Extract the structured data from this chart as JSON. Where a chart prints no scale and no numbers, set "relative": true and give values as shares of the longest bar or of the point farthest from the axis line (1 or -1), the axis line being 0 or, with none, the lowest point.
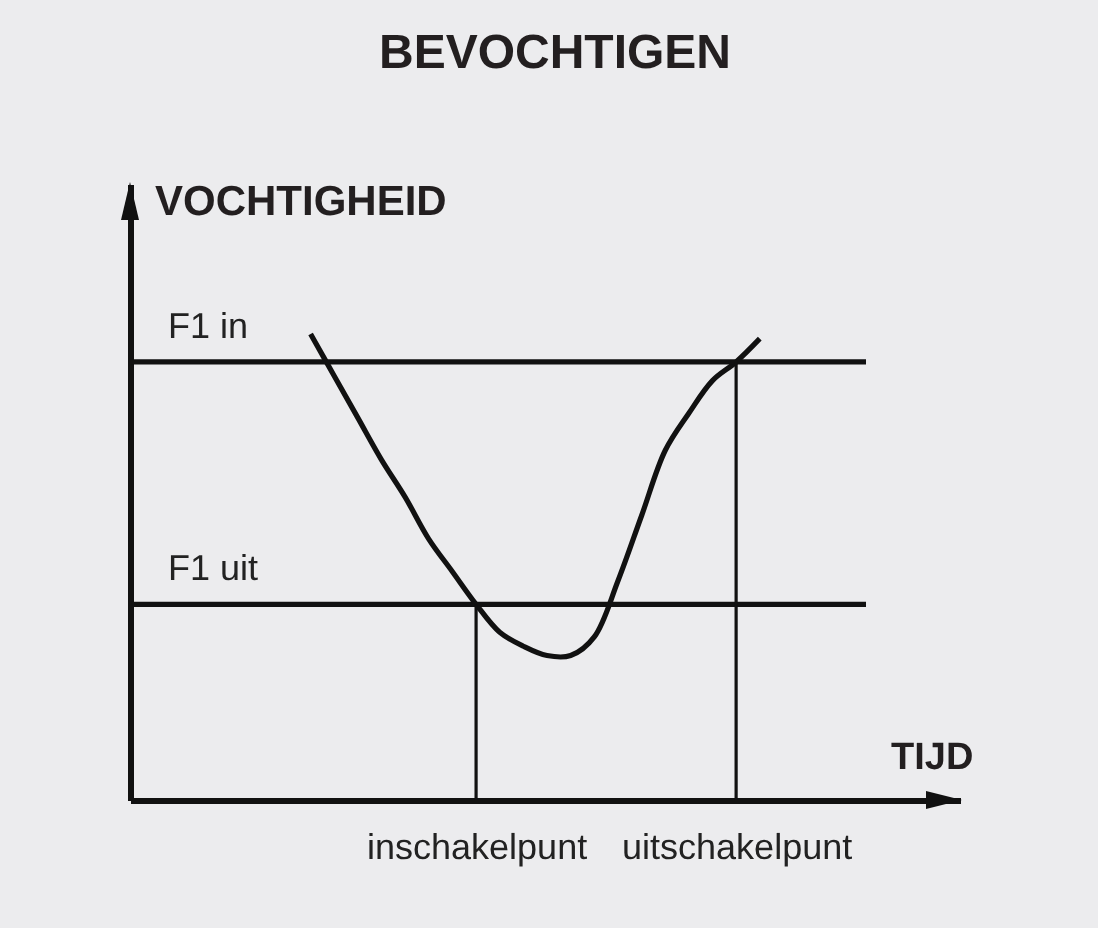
{
  "chart_data": {
    "type": "line",
    "title": "BEVOCHTIGEN",
    "xlabel": "TIJD",
    "ylabel": "VOCHTIGHEID",
    "relative": true,
    "categories": [
      null,
      null,
      null,
      null,
      null,
      null,
      null,
      "inschakelpunt",
      null,
      null,
      null,
      null,
      null,
      null,
      null,
      null,
      null,
      null,
      "uitschakelpunt",
      null
    ],
    "series": [
      {
        "color": "#111111",
        "values": [
          1.0,
          0.91,
          0.82,
          0.73,
          0.65,
          0.56,
          0.49,
          0.42,
          0.36,
          0.33,
          0.31,
          0.31,
          0.35,
          0.47,
          0.61,
          0.75,
          0.83,
          0.9,
          0.94,
          0.99
        ]
      }
    ],
    "ref_lines": [
      {
        "axis": "y",
        "value": 0.94,
        "label": "F1 in",
        "color": "#111111"
      },
      {
        "axis": "y",
        "value": 0.42,
        "label": "F1 uit",
        "color": "#111111"
      },
      {
        "axis": "x",
        "value": "inschakelpunt",
        "color": "#111111"
      },
      {
        "axis": "x",
        "value": "uitschakelpunt",
        "color": "#111111"
      }
    ]
  }
}
